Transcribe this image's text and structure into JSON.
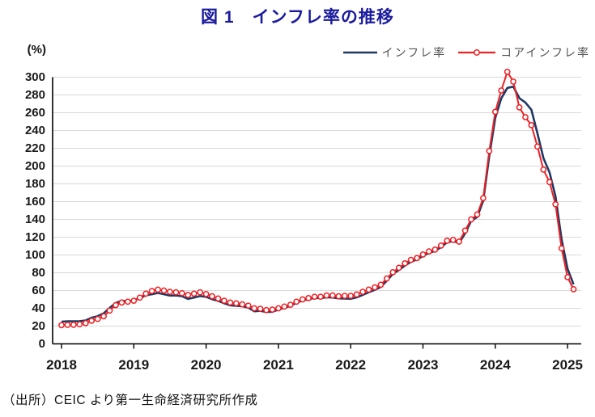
{
  "page": {
    "title": "図 1　インフレ率の推移",
    "source_note": "（出所）CEIC より第一生命経済研究所作成"
  },
  "chart_data": {
    "type": "line",
    "title": "図 1　インフレ率の推移",
    "unit_label": "(%)",
    "xlabel": "",
    "ylabel": "(%)",
    "ylim": [
      0,
      300
    ],
    "y_tick_step": 20,
    "x_tick_labels": [
      "2018",
      "2019",
      "2020",
      "2021",
      "2022",
      "2023",
      "2024",
      "2025"
    ],
    "x_start_year": 2018,
    "x_frequency": "monthly",
    "x_end": "2025-02",
    "grid": "horizontal-gray",
    "legend_position": "top-right",
    "axis_color": "#000000",
    "grid_color": "#d9d9d9",
    "series": [
      {
        "name": "インフレ率",
        "color": "#1F3864",
        "marker": "none",
        "values": [
          25.0,
          25.4,
          25.4,
          25.5,
          26.3,
          29.5,
          31.2,
          34.4,
          40.5,
          45.9,
          48.5,
          47.6,
          49.3,
          51.3,
          54.7,
          55.8,
          57.3,
          55.8,
          54.4,
          54.5,
          53.5,
          50.5,
          52.1,
          53.8,
          52.9,
          50.3,
          48.4,
          45.6,
          43.4,
          42.8,
          42.4,
          40.7,
          36.6,
          37.2,
          35.8,
          36.1,
          38.5,
          40.7,
          42.6,
          46.3,
          48.8,
          50.2,
          51.8,
          51.4,
          52.5,
          52.1,
          51.2,
          50.9,
          50.7,
          52.3,
          55.1,
          58.0,
          60.7,
          64.0,
          71.0,
          78.5,
          83.0,
          88.0,
          92.4,
          94.8,
          98.8,
          102.5,
          104.3,
          108.8,
          114.2,
          115.6,
          113.4,
          124.4,
          138.3,
          142.7,
          160.9,
          211.4,
          254.2,
          276.2,
          287.9,
          289.4,
          276.4,
          271.5,
          263.4,
          236.7,
          209.0,
          193.0,
          166.0,
          117.8,
          84.5,
          66.9
        ]
      },
      {
        "name": "コアインフレ率",
        "color": "#ED2024",
        "marker": "open-circle",
        "values": [
          21.0,
          21.4,
          21.5,
          22.0,
          23.3,
          26.0,
          28.0,
          31.0,
          37.5,
          43.5,
          46.5,
          47.5,
          48.5,
          52.0,
          56.5,
          59.5,
          61.0,
          60.0,
          58.5,
          58.0,
          57.0,
          55.0,
          56.5,
          58.0,
          56.0,
          53.5,
          51.0,
          48.5,
          46.5,
          45.5,
          44.5,
          43.0,
          40.0,
          39.5,
          38.0,
          38.5,
          40.0,
          42.0,
          44.0,
          47.5,
          50.0,
          51.5,
          53.0,
          53.0,
          54.5,
          54.5,
          53.5,
          54.0,
          54.0,
          55.5,
          58.5,
          61.0,
          63.5,
          66.5,
          73.5,
          80.5,
          85.5,
          90.5,
          94.5,
          96.5,
          100.5,
          104.0,
          106.0,
          110.5,
          116.0,
          117.0,
          115.0,
          127.5,
          140.0,
          145.5,
          164.0,
          217.0,
          261.0,
          285.0,
          306.0,
          295.0,
          266.0,
          255.0,
          246.0,
          222.0,
          196.0,
          182.0,
          157.0,
          107.5,
          75.0,
          61.5
        ]
      }
    ]
  }
}
